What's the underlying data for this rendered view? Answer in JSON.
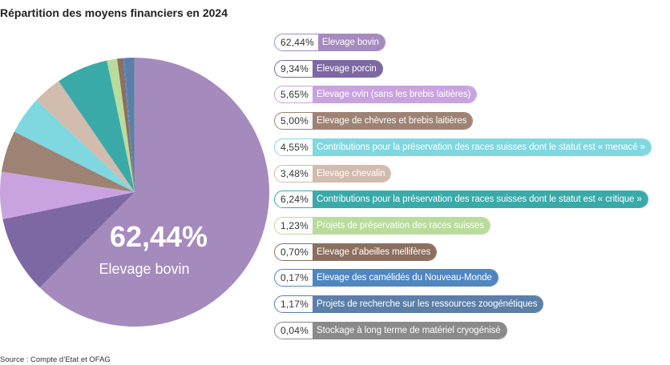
{
  "chart_data": {
    "type": "pie",
    "title": "Répartition des moyens financiers en 2024",
    "source": "Source : Compte d’Etat et OFAG",
    "categories": [
      "Elevage bovin",
      "Elevage porcin",
      "Elevage ovin (sans les brebis laitières)",
      "Elevage de chèvres et brebis laitières",
      "Contributions pour la préservation des races suisses dont le statut est « menacé »",
      "Elevage chevalin",
      "Contributions pour la préservation des races suisses dont le statut est « critique »",
      "Projets de préservation des races suisses",
      "Elevage d’abeilles mellifères",
      "Elevage des camélidés du Nouveau-Monde",
      "Projets de recherche sur les ressources zoogénétiques",
      "Stockage à long terme de matériel cryogénisé"
    ],
    "values": [
      62.44,
      9.34,
      5.65,
      5.0,
      4.55,
      3.48,
      6.24,
      1.23,
      0.7,
      0.17,
      1.17,
      0.04
    ],
    "value_labels": [
      "62,44%",
      "9,34%",
      "5,65%",
      "5,00%",
      "4,55%",
      "3,48%",
      "6,24%",
      "1,23%",
      "0,70%",
      "0,17%",
      "1,17%",
      "0,04%"
    ],
    "colors": [
      "#a58bbd",
      "#7d68a3",
      "#c9a3e0",
      "#9e8274",
      "#7fd8e0",
      "#d2bcae",
      "#3aaaa9",
      "#b9dc9c",
      "#8c6f5f",
      "#4f86c0",
      "#5b7fa8",
      "#8a8a8a"
    ]
  }
}
